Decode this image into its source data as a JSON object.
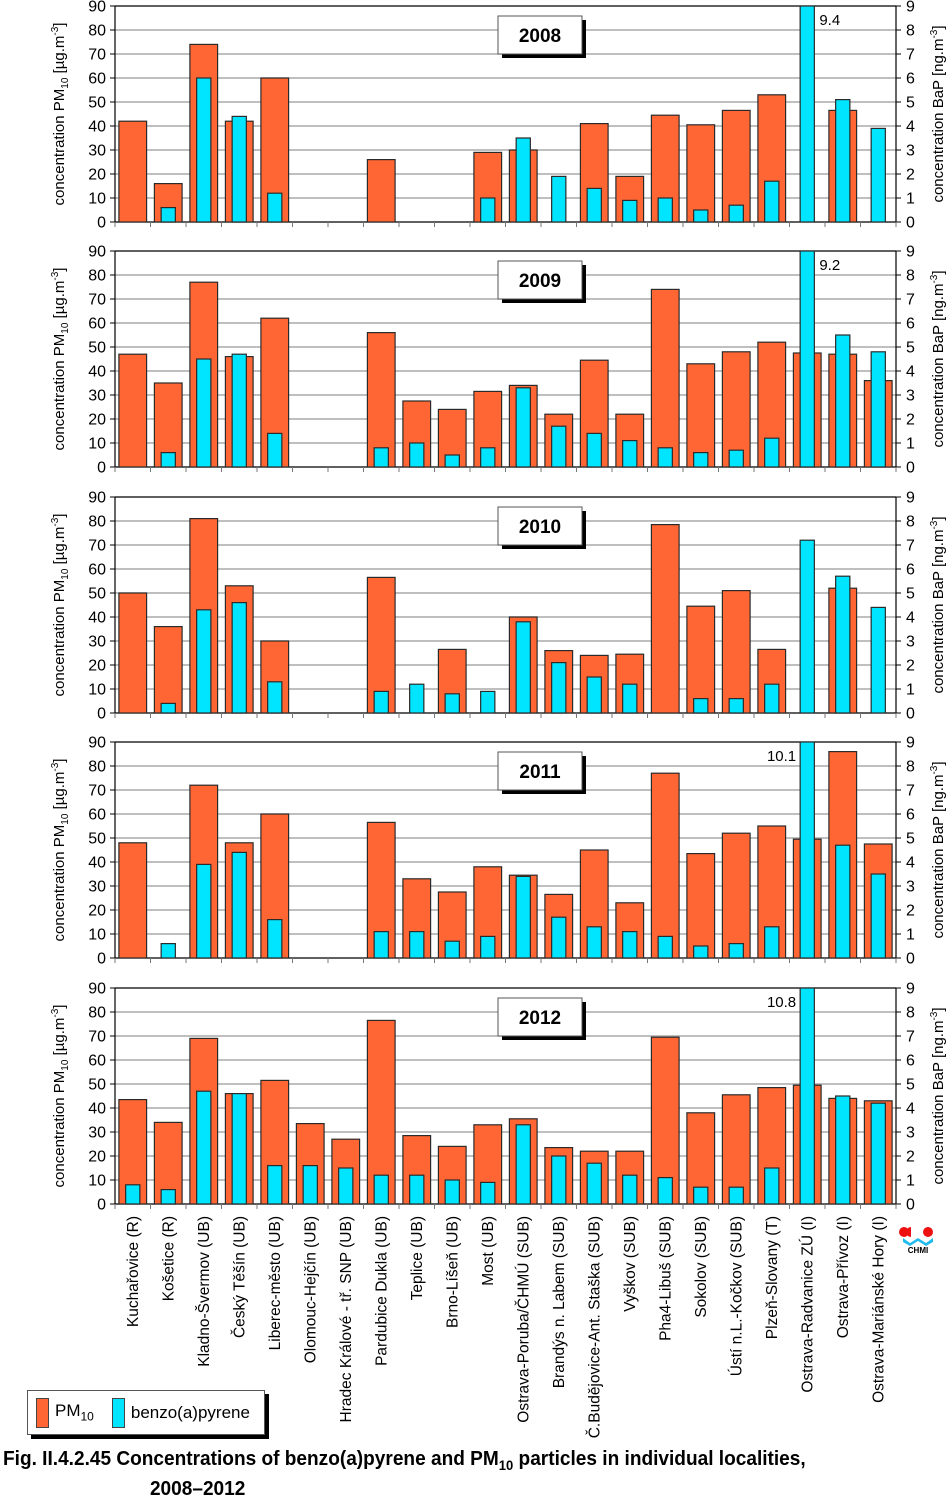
{
  "chart_data": {
    "type": "bar",
    "title": "Fig. II.4.2.45  Concentrations of benzo(a)pyrene and PM10 particles in individual localities, 2008–2012",
    "caption_prefix": "Fig. II.4.2.45  Concentrations of benzo(a)pyrene and PM",
    "caption_sub": "10",
    "caption_suffix": " particles in individual localities,",
    "caption_line2": "2008–2012",
    "ylabel_left_main": "concentration PM",
    "ylabel_left_sub": "10",
    "ylabel_left_unit": " [µg.m",
    "ylabel_left_sup": "-3",
    "ylabel_left_close": "]",
    "ylabel_right_main": "concentration BaP [ng.m",
    "ylabel_right_sup": "-3",
    "ylabel_right_close": "]",
    "ylim_left": [
      0,
      90
    ],
    "ylim_right": [
      0,
      9
    ],
    "yticks_left": [
      0,
      10,
      20,
      30,
      40,
      50,
      60,
      70,
      80,
      90
    ],
    "yticks_right": [
      0,
      1,
      2,
      3,
      4,
      5,
      6,
      7,
      8,
      9
    ],
    "grid": true,
    "legend_placement": "bottom-left",
    "legend": [
      {
        "name": "PM",
        "sub": "10",
        "color": "#FF6633"
      },
      {
        "name": "benzo(a)pyrene",
        "sub": "",
        "color": "#00E5FF"
      }
    ],
    "colors": {
      "pm10": "#FF6633",
      "bap": "#00E5FF",
      "bar_edge": "#2a2a2a",
      "grid": "#999999"
    },
    "categories": [
      "Kuchařovice (R)",
      "Košetice (R)",
      "Kladno-Švermov (UB)",
      "Český Těšín (UB)",
      "Liberec-město (UB)",
      "Olomouc-Hejčín (UB)",
      "Hradec Králové - tř. SNP (UB)",
      "Pardubice Dukla (UB)",
      "Teplice  (UB)",
      "Brno-Líšeň (UB)",
      "Most (UB)",
      "Ostrava-Poruba/ČHMÚ (SUB)",
      "Brandýs n. Labem (SUB)",
      "Č.Budějovice-Ant. Staška (SUB)",
      "Vyškov (SUB)",
      "Pha4-Libuš (SUB)",
      "Sokolov (SUB)",
      "Ústí n.L.-Kočkov (SUB)",
      "Plzeň-Slovany (T)",
      "Ostrava-Radvanice ZÚ (I)",
      "Ostrava-Přívoz (I)",
      "Ostrava-Mariánské Hory (I)"
    ],
    "panels": [
      {
        "year": "2008",
        "series": [
          {
            "name": "PM10",
            "axis": "left",
            "values": [
              42,
              16,
              74,
              42,
              60,
              null,
              null,
              26,
              null,
              null,
              29,
              30,
              null,
              41,
              19,
              44.5,
              40.5,
              46.5,
              53,
              null,
              46.5,
              null
            ]
          },
          {
            "name": "benzo(a)pyrene",
            "axis": "right",
            "values": [
              null,
              0.6,
              6.0,
              4.4,
              1.2,
              null,
              null,
              null,
              null,
              null,
              1.0,
              3.5,
              1.9,
              1.4,
              0.9,
              1.0,
              0.5,
              0.7,
              1.7,
              9.4,
              5.1,
              3.9
            ]
          }
        ],
        "annotation": {
          "text": "9.4",
          "category_index": 19,
          "side": "right"
        }
      },
      {
        "year": "2009",
        "series": [
          {
            "name": "PM10",
            "axis": "left",
            "values": [
              47,
              35,
              77,
              46,
              62,
              null,
              null,
              56,
              27.5,
              24,
              31.5,
              34,
              22,
              44.5,
              22,
              74,
              43,
              48,
              52,
              47.5,
              47,
              36
            ]
          },
          {
            "name": "benzo(a)pyrene",
            "axis": "right",
            "values": [
              null,
              0.6,
              4.5,
              4.7,
              1.4,
              null,
              null,
              0.8,
              1.0,
              0.5,
              0.8,
              3.3,
              1.7,
              1.4,
              1.1,
              0.8,
              0.6,
              0.7,
              1.2,
              9.2,
              5.5,
              4.8
            ]
          }
        ],
        "annotation": {
          "text": "9.2",
          "category_index": 19,
          "side": "right"
        }
      },
      {
        "year": "2010",
        "series": [
          {
            "name": "PM10",
            "axis": "left",
            "values": [
              50,
              36,
              81,
              53,
              30,
              null,
              null,
              56.5,
              null,
              26.5,
              null,
              40,
              26,
              24,
              24.5,
              78.5,
              44.5,
              51,
              26.5,
              null,
              52,
              null
            ]
          },
          {
            "name": "benzo(a)pyrene",
            "axis": "right",
            "values": [
              null,
              0.4,
              4.3,
              4.6,
              1.3,
              null,
              null,
              0.9,
              1.2,
              0.8,
              0.9,
              3.8,
              2.1,
              1.5,
              1.2,
              null,
              0.6,
              0.6,
              1.2,
              7.2,
              5.7,
              4.4
            ]
          }
        ],
        "annotation": null
      },
      {
        "year": "2011",
        "series": [
          {
            "name": "PM10",
            "axis": "left",
            "values": [
              48,
              null,
              72,
              48,
              60,
              null,
              null,
              56.5,
              33,
              27.5,
              38,
              34.5,
              26.5,
              45,
              23,
              77,
              43.5,
              52,
              55,
              49.5,
              86,
              47.5
            ]
          },
          {
            "name": "benzo(a)pyrene",
            "axis": "right",
            "values": [
              null,
              0.6,
              3.9,
              4.4,
              1.6,
              null,
              null,
              1.1,
              1.1,
              0.7,
              0.9,
              3.4,
              1.7,
              1.3,
              1.1,
              0.9,
              0.5,
              0.6,
              1.3,
              10.1,
              4.7,
              3.5
            ]
          }
        ],
        "annotation": {
          "text": "10.1",
          "category_index": 19,
          "side": "left"
        }
      },
      {
        "year": "2012",
        "series": [
          {
            "name": "PM10",
            "axis": "left",
            "values": [
              43.5,
              34,
              69,
              46,
              51.5,
              33.5,
              27,
              76.5,
              28.5,
              24,
              33,
              35.5,
              23.5,
              22,
              22,
              69.5,
              38,
              45.5,
              48.5,
              49.5,
              44,
              43
            ]
          },
          {
            "name": "benzo(a)pyrene",
            "axis": "right",
            "values": [
              0.8,
              0.6,
              4.7,
              4.6,
              1.6,
              1.6,
              1.5,
              1.2,
              1.2,
              1.0,
              0.9,
              3.3,
              2.0,
              1.7,
              1.2,
              1.1,
              0.7,
              0.7,
              1.5,
              10.8,
              4.5,
              4.2
            ]
          }
        ],
        "annotation": {
          "text": "10.8",
          "category_index": 19,
          "side": "left"
        }
      }
    ]
  },
  "logo": {
    "text": "CHMI",
    "red": "#EE1111",
    "blue": "#22BBEE"
  }
}
